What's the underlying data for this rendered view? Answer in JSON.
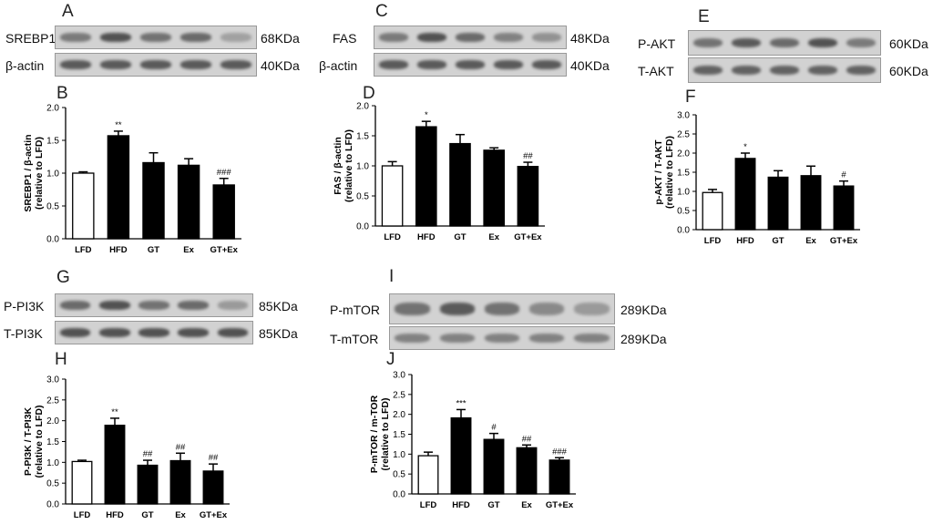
{
  "panels": {
    "A": {
      "letter": "A",
      "rows": [
        {
          "label": "SREBP1",
          "kda": "68KDa",
          "bands": [
            0.55,
            0.8,
            0.6,
            0.65,
            0.3
          ]
        },
        {
          "label": "β-actin",
          "kda": "40KDa",
          "bands": [
            0.75,
            0.75,
            0.75,
            0.75,
            0.75
          ]
        }
      ]
    },
    "C": {
      "letter": "C",
      "rows": [
        {
          "label": "FAS",
          "kda": "48KDa",
          "bands": [
            0.55,
            0.8,
            0.65,
            0.5,
            0.4
          ]
        },
        {
          "label": "β-actin",
          "kda": "40KDa",
          "bands": [
            0.75,
            0.75,
            0.75,
            0.75,
            0.75
          ]
        }
      ]
    },
    "E": {
      "letter": "E",
      "rows": [
        {
          "label": "P-AKT",
          "kda": "60KDa",
          "bands": [
            0.6,
            0.75,
            0.65,
            0.8,
            0.55
          ]
        },
        {
          "label": "T-AKT",
          "kda": "60KDa",
          "bands": [
            0.7,
            0.7,
            0.7,
            0.7,
            0.7
          ]
        }
      ]
    },
    "G": {
      "letter": "G",
      "rows": [
        {
          "label": "P-PI3K",
          "kda": "85KDa",
          "bands": [
            0.65,
            0.8,
            0.6,
            0.65,
            0.35
          ]
        },
        {
          "label": "T-PI3K",
          "kda": "85KDa",
          "bands": [
            0.8,
            0.8,
            0.8,
            0.8,
            0.8
          ]
        }
      ]
    },
    "I": {
      "letter": "I",
      "rows": [
        {
          "label": "P-mTOR",
          "kda": "289KDa",
          "bands": [
            0.6,
            0.75,
            0.6,
            0.45,
            0.35
          ]
        },
        {
          "label": "T-mTOR",
          "kda": "289KDa",
          "bands": [
            0.5,
            0.5,
            0.5,
            0.5,
            0.5
          ]
        }
      ]
    },
    "B": {
      "letter": "B"
    },
    "D": {
      "letter": "D"
    },
    "F": {
      "letter": "F"
    },
    "H": {
      "letter": "H"
    },
    "J": {
      "letter": "J"
    }
  },
  "chart_data": [
    {
      "id": "B",
      "type": "bar",
      "categories": [
        "LFD",
        "HFD",
        "GT",
        "Ex",
        "GT+Ex"
      ],
      "values": [
        1.0,
        1.57,
        1.16,
        1.12,
        0.82
      ],
      "errors": [
        0.02,
        0.07,
        0.15,
        0.1,
        0.1
      ],
      "annotations": [
        "",
        "**",
        "",
        "",
        "###"
      ],
      "fill": [
        "#ffffff",
        "#000000",
        "#000000",
        "#000000",
        "#000000"
      ],
      "ylabel": "SREBP1 / β-actin",
      "ylabel2": "(relative to LFD)",
      "ylim": [
        0,
        2.0
      ],
      "yticks": [
        "0.0",
        "0.5",
        "1.0",
        "1.5",
        "2.0"
      ]
    },
    {
      "id": "D",
      "type": "bar",
      "categories": [
        "LFD",
        "HFD",
        "GT",
        "Ex",
        "GT+Ex"
      ],
      "values": [
        1.0,
        1.65,
        1.37,
        1.26,
        0.99
      ],
      "errors": [
        0.07,
        0.09,
        0.15,
        0.04,
        0.07
      ],
      "annotations": [
        "",
        "*",
        "",
        "",
        "##"
      ],
      "fill": [
        "#ffffff",
        "#000000",
        "#000000",
        "#000000",
        "#000000"
      ],
      "ylabel": "FAS / β-actin",
      "ylabel2": "(relative to LFD)",
      "ylim": [
        0,
        2.0
      ],
      "yticks": [
        "0.0",
        "0.5",
        "1.0",
        "1.5",
        "2.0"
      ]
    },
    {
      "id": "F",
      "type": "bar",
      "categories": [
        "LFD",
        "HFD",
        "GT",
        "Ex",
        "GT+Ex"
      ],
      "values": [
        0.97,
        1.86,
        1.37,
        1.41,
        1.14
      ],
      "errors": [
        0.08,
        0.14,
        0.17,
        0.25,
        0.13
      ],
      "annotations": [
        "",
        "*",
        "",
        "",
        "#"
      ],
      "fill": [
        "#ffffff",
        "#000000",
        "#000000",
        "#000000",
        "#000000"
      ],
      "ylabel": "p-AKT / T-AKT",
      "ylabel2": "(relative to LFD)",
      "ylim": [
        0,
        3.0
      ],
      "yticks": [
        "0.0",
        "0.5",
        "1.0",
        "1.5",
        "2.0",
        "2.5",
        "3.0"
      ]
    },
    {
      "id": "H",
      "type": "bar",
      "categories": [
        "LFD",
        "HFD",
        "GT",
        "Ex",
        "GT+Ex"
      ],
      "values": [
        1.02,
        1.89,
        0.93,
        1.04,
        0.79
      ],
      "errors": [
        0.03,
        0.17,
        0.12,
        0.18,
        0.17
      ],
      "annotations": [
        "",
        "**",
        "##",
        "##",
        "##"
      ],
      "fill": [
        "#ffffff",
        "#000000",
        "#000000",
        "#000000",
        "#000000"
      ],
      "ylabel": "P-PI3K / T-PI3K",
      "ylabel2": "(relative to LFD)",
      "ylim": [
        0,
        3.0
      ],
      "yticks": [
        "0.0",
        "0.5",
        "1.0",
        "1.5",
        "2.0",
        "2.5",
        "3.0"
      ]
    },
    {
      "id": "J",
      "type": "bar",
      "categories": [
        "LFD",
        "HFD",
        "GT",
        "Ex",
        "GT+Ex"
      ],
      "values": [
        0.96,
        1.91,
        1.37,
        1.16,
        0.85
      ],
      "errors": [
        0.09,
        0.21,
        0.15,
        0.07,
        0.06
      ],
      "annotations": [
        "",
        "***",
        "#",
        "##",
        "###"
      ],
      "fill": [
        "#ffffff",
        "#000000",
        "#000000",
        "#000000",
        "#000000"
      ],
      "ylabel": "P-mTOR / m-TOR",
      "ylabel2": "(relative to LFD)",
      "ylim": [
        0,
        3.0
      ],
      "yticks": [
        "0.0",
        "0.5",
        "1.0",
        "1.5",
        "2.0",
        "2.5",
        "3.0"
      ]
    }
  ]
}
